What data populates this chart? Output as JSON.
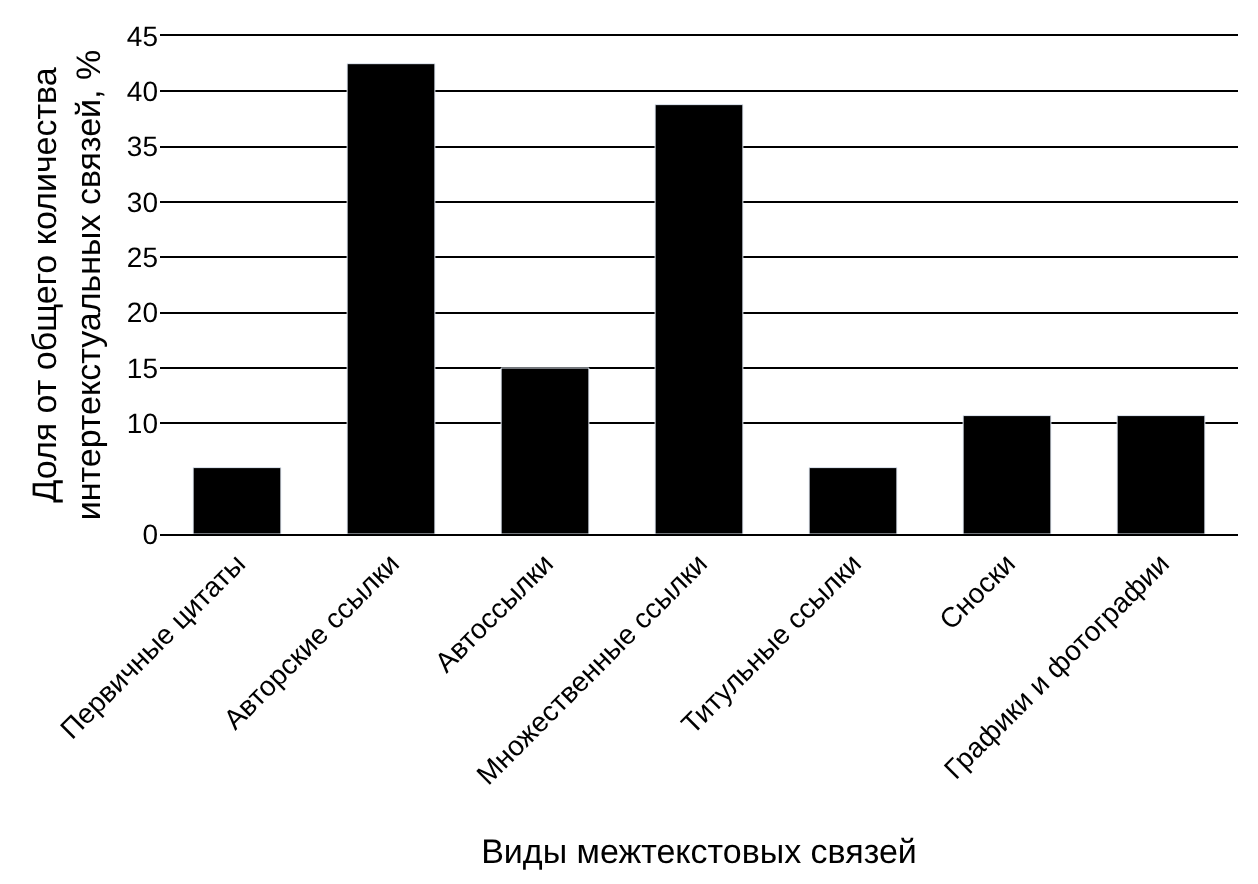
{
  "chart_data": {
    "type": "bar",
    "xlabel": "Виды межтекстовых связей",
    "ylabel": "Доля от общего количества\nинтертекстуальных связей, %",
    "categories": [
      "Первичные цитаты",
      "Авторские ссылки",
      "Автоссылки",
      "Множественные ссылки",
      "Титульные ссылки",
      "Сноски",
      "Графики и фотографии"
    ],
    "values": [
      6,
      42.5,
      15,
      38.8,
      6,
      10.7,
      10.7
    ],
    "color": "#000000",
    "ylim": [
      0,
      45
    ],
    "yticks": [
      0,
      10,
      15,
      20,
      25,
      30,
      35,
      40,
      45
    ],
    "grid": "y"
  }
}
